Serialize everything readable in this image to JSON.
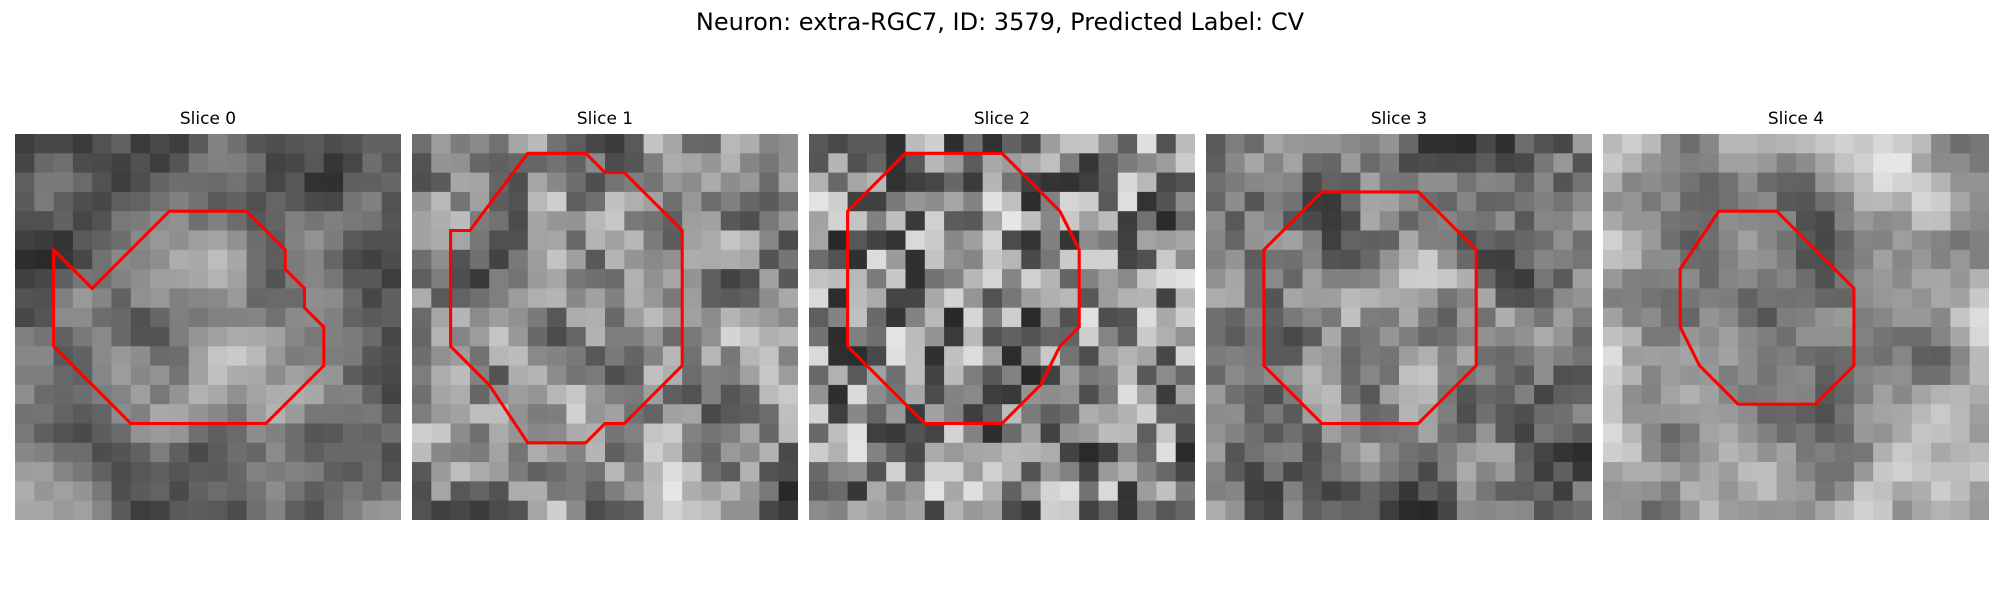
{
  "figure": {
    "title": "Neuron: extra-RGC7, ID: 3579, Predicted Label: CV"
  },
  "panels": [
    {
      "title": "Slice 0",
      "seed": 11,
      "blur": 2,
      "bright_center": true,
      "dark_center": false,
      "contour": [
        [
          4,
          8
        ],
        [
          8,
          4
        ],
        [
          12,
          4
        ],
        [
          13,
          5
        ],
        [
          14,
          6
        ],
        [
          14,
          7
        ],
        [
          15,
          8
        ],
        [
          15,
          9
        ],
        [
          16,
          10
        ],
        [
          16,
          12
        ],
        [
          14,
          14
        ],
        [
          13,
          15
        ],
        [
          6,
          15
        ],
        [
          5,
          14
        ],
        [
          3,
          12
        ],
        [
          2,
          11
        ],
        [
          2,
          6
        ]
      ]
    },
    {
      "title": "Slice 1",
      "seed": 27,
      "blur": 1,
      "bright_center": false,
      "dark_center": false,
      "contour": [
        [
          3,
          5
        ],
        [
          6,
          1
        ],
        [
          9,
          1
        ],
        [
          10,
          2
        ],
        [
          11,
          2
        ],
        [
          13,
          4
        ],
        [
          14,
          5
        ],
        [
          14,
          12
        ],
        [
          12,
          14
        ],
        [
          11,
          15
        ],
        [
          10,
          15
        ],
        [
          9,
          16
        ],
        [
          6,
          16
        ],
        [
          4,
          13
        ],
        [
          3,
          12
        ],
        [
          2,
          11
        ],
        [
          2,
          5
        ]
      ]
    },
    {
      "title": "Slice 2",
      "seed": 43,
      "blur": 0,
      "bright_center": false,
      "dark_center": false,
      "contour": [
        [
          2,
          4
        ],
        [
          5,
          1
        ],
        [
          10,
          1
        ],
        [
          11,
          2
        ],
        [
          12,
          3
        ],
        [
          13,
          4
        ],
        [
          14,
          6
        ],
        [
          14,
          10
        ],
        [
          13,
          11
        ],
        [
          12,
          13
        ],
        [
          11,
          14
        ],
        [
          10,
          15
        ],
        [
          6,
          15
        ],
        [
          4,
          13
        ],
        [
          3,
          12
        ],
        [
          2,
          11
        ],
        [
          2,
          4
        ]
      ]
    },
    {
      "title": "Slice 3",
      "seed": 59,
      "blur": 1,
      "bright_center": true,
      "dark_center": false,
      "contour": [
        [
          3,
          6
        ],
        [
          6,
          3
        ],
        [
          11,
          3
        ],
        [
          12,
          4
        ],
        [
          13,
          5
        ],
        [
          14,
          6
        ],
        [
          14,
          12
        ],
        [
          12,
          14
        ],
        [
          11,
          15
        ],
        [
          6,
          15
        ],
        [
          4,
          13
        ],
        [
          3,
          12
        ],
        [
          3,
          6
        ]
      ]
    },
    {
      "title": "Slice 4",
      "seed": 73,
      "blur": 2,
      "bright_center": false,
      "dark_center": true,
      "contour": [
        [
          4,
          7
        ],
        [
          6,
          4
        ],
        [
          9,
          4
        ],
        [
          11,
          6
        ],
        [
          13,
          8
        ],
        [
          13,
          12
        ],
        [
          11,
          14
        ],
        [
          10,
          14
        ],
        [
          7,
          14
        ],
        [
          5,
          12
        ],
        [
          4,
          10
        ],
        [
          4,
          7
        ]
      ]
    }
  ],
  "colors": {
    "contour": "#ff0000",
    "background": "#ffffff"
  }
}
